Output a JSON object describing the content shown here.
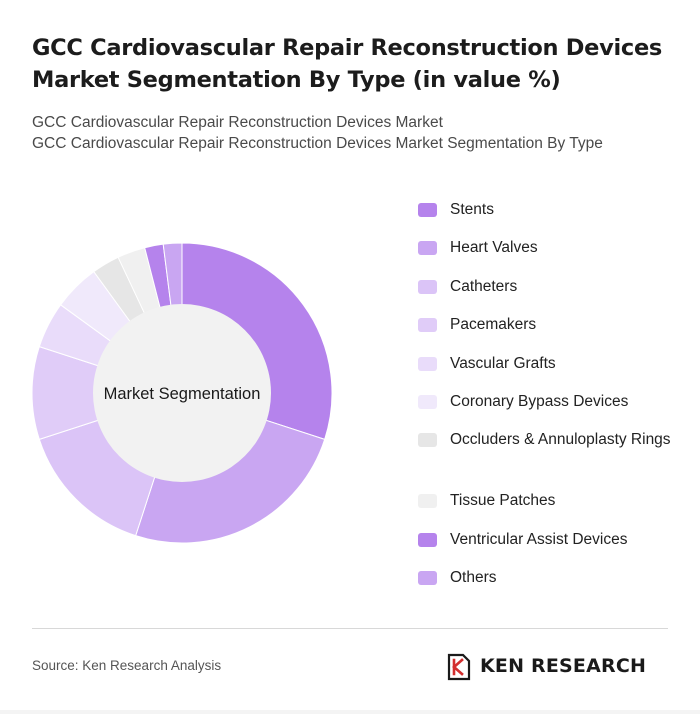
{
  "title": "GCC Cardiovascular Repair Reconstruction Devices Market Segmentation By Type (in value %)",
  "subtitles": [
    "GCC Cardiovascular Repair Reconstruction Devices Market",
    "GCC Cardiovascular Repair Reconstruction Devices Market Segmentation By Type"
  ],
  "chart_data": {
    "type": "pie",
    "title": "GCC Cardiovascular Repair Reconstruction Devices Market Segmentation By Type (in value %)",
    "center_label": "Market Segmentation",
    "categories": [
      "Stents",
      "Heart Valves",
      "Catheters",
      "Pacemakers",
      "Vascular Grafts",
      "Coronary Bypass Devices",
      "Occluders & Annuloplasty Rings",
      "Tissue Patches",
      "Ventricular Assist Devices",
      "Others"
    ],
    "values": [
      30,
      25,
      15,
      10,
      5,
      5,
      3,
      3,
      2,
      2
    ],
    "colors": [
      "#b583ec",
      "#c9a6f2",
      "#dbc4f7",
      "#e0ccf8",
      "#e9dcfa",
      "#f0e9fb",
      "#e6e6e6",
      "#f0f0f0",
      "#b583ec",
      "#c9a6f2"
    ],
    "legend_position": "right"
  },
  "source": "Source: Ken Research Analysis",
  "brand": {
    "name": "KEN RESEARCH"
  }
}
